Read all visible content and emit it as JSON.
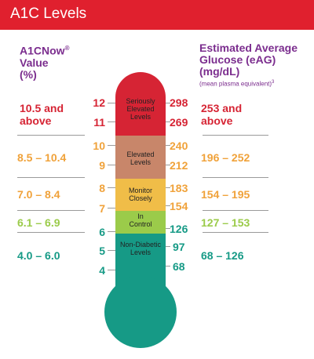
{
  "header": {
    "title": "A1C Levels"
  },
  "left_header": {
    "line1": "A1CNow",
    "reg": "®",
    "line2": "Value",
    "line3": "(%)"
  },
  "right_header": {
    "line1": "Estimated Average",
    "line2": "Glucose (eAG)",
    "line3": "(mg/dL)",
    "note": "(mean plasma equivalent)",
    "note_sup": "3"
  },
  "colors": {
    "header": "#e0202e",
    "purple": "#7b2d8e",
    "seriously_elevated": "#d62434",
    "elevated": "#c8866a",
    "monitor_closely": "#f0bd48",
    "in_control": "#9bcb4a",
    "non_diabetic": "#169a86"
  },
  "chart_data": {
    "type": "table",
    "title": "A1C Levels",
    "columns": [
      "A1CNow® Value (%)",
      "Estimated Average Glucose (eAG) (mg/dL)"
    ],
    "rows": [
      {
        "a1c": "10.5 and above",
        "eag": "253 and above",
        "level": "Seriously Elevated Levels",
        "a1c_ticks": [
          "12",
          "11"
        ],
        "eag_ticks": [
          "298",
          "269"
        ],
        "color": "#d62434"
      },
      {
        "a1c": "8.5 – 10.4",
        "eag": "196 – 252",
        "level": "Elevated Levels",
        "a1c_ticks": [
          "10",
          "9"
        ],
        "eag_ticks": [
          "240",
          "212"
        ],
        "color": "#c8866a"
      },
      {
        "a1c": "7.0 – 8.4",
        "eag": "154 – 195",
        "level": "Monitor Closely",
        "a1c_ticks": [
          "8",
          "7"
        ],
        "eag_ticks": [
          "183",
          "154"
        ],
        "color": "#f0bd48"
      },
      {
        "a1c": "6.1 – 6.9",
        "eag": "127 – 153",
        "level": "In Control",
        "a1c_ticks": [
          "6"
        ],
        "eag_ticks": [
          "126"
        ],
        "color": "#9bcb4a"
      },
      {
        "a1c": "4.0 – 6.0",
        "eag": "68 – 126",
        "level": "Non-Diabetic Levels",
        "a1c_ticks": [
          "5",
          "4"
        ],
        "eag_ticks": [
          "97",
          "68"
        ],
        "color": "#169a86"
      }
    ]
  }
}
